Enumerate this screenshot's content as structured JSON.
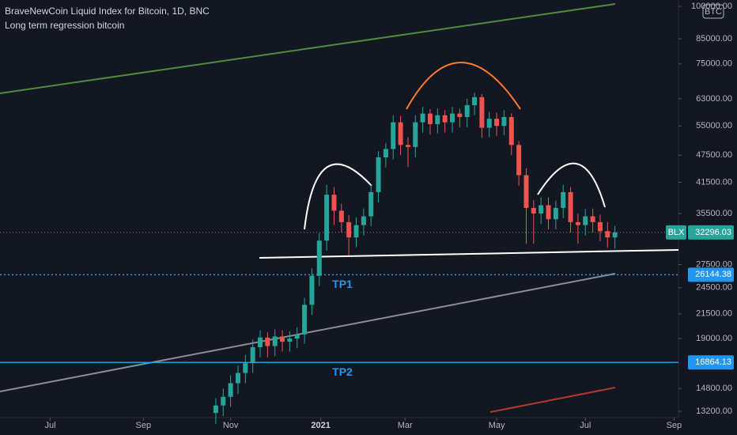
{
  "chart_data": {
    "type": "candlestick",
    "title": "BraveNewCoin Liquid Index for Bitcoin, 1D, BNC",
    "subtitle": "Long term regression bitcoin",
    "currency": "BTC",
    "yscale": "log",
    "ylim": [
      12800,
      103200
    ],
    "yticks": [
      {
        "value": 100000,
        "label": "100000.00"
      },
      {
        "value": 85000,
        "label": "85000.00"
      },
      {
        "value": 75000,
        "label": "75000.00"
      },
      {
        "value": 63000,
        "label": "63000.00"
      },
      {
        "value": 55000,
        "label": "55000.00"
      },
      {
        "value": 47500,
        "label": "47500.00"
      },
      {
        "value": 41500,
        "label": "41500.00"
      },
      {
        "value": 35500,
        "label": "35500.00"
      },
      {
        "value": 27500,
        "label": "27500.00"
      },
      {
        "value": 24500,
        "label": "24500.00"
      },
      {
        "value": 21500,
        "label": "21500.00"
      },
      {
        "value": 19000,
        "label": "19000.00"
      },
      {
        "value": 14800,
        "label": "14800.00"
      },
      {
        "value": 13200,
        "label": "13200.00"
      }
    ],
    "xlim": [
      0,
      459
    ],
    "xticks": [
      {
        "value": 34,
        "label": "Jul"
      },
      {
        "value": 97,
        "label": "Sep"
      },
      {
        "value": 156,
        "label": "Nov"
      },
      {
        "value": 217,
        "label": "2021"
      },
      {
        "value": 274,
        "label": "Mar"
      },
      {
        "value": 336,
        "label": "May"
      },
      {
        "value": 396,
        "label": "Jul"
      },
      {
        "value": 456,
        "label": "Sep"
      }
    ],
    "up_color": "#26a69a",
    "down_color": "#ef5350",
    "x": [
      146,
      151,
      156,
      161,
      166,
      171,
      176,
      181,
      186,
      191,
      196,
      201,
      206,
      211,
      216,
      221,
      226,
      231,
      236,
      241,
      246,
      251,
      256,
      261,
      266,
      271,
      276,
      281,
      286,
      291,
      296,
      301,
      306,
      311,
      316,
      321,
      326,
      331,
      336,
      341,
      346,
      351,
      356,
      361,
      366,
      371,
      376,
      381,
      386,
      391,
      396,
      401,
      406,
      411,
      416
    ],
    "open": [
      13100,
      13600,
      14200,
      15200,
      16000,
      16800,
      18200,
      19100,
      18300,
      19200,
      18700,
      19000,
      19400,
      22500,
      26000,
      31000,
      39000,
      36000,
      34000,
      31500,
      33500,
      35000,
      39500,
      47000,
      49000,
      56000,
      50000,
      49500,
      56000,
      58500,
      55500,
      58000,
      56000,
      58500,
      57500,
      61000,
      63500,
      54500,
      57000,
      55000,
      57500,
      50000,
      43000,
      36500,
      35500,
      37000,
      34500,
      36500,
      39500,
      34000,
      33500,
      35000,
      34000,
      32500,
      31500
    ],
    "high": [
      14100,
      14800,
      15800,
      16600,
      17500,
      18900,
      19800,
      19600,
      19900,
      19800,
      19700,
      20100,
      23300,
      27000,
      32200,
      41000,
      40500,
      37300,
      35200,
      34800,
      36400,
      41000,
      48500,
      50500,
      58000,
      57800,
      52000,
      58000,
      60500,
      59800,
      60000,
      59500,
      60500,
      60000,
      63000,
      65000,
      64500,
      59000,
      58800,
      59500,
      58600,
      51000,
      44500,
      38000,
      38500,
      38500,
      37900,
      41000,
      40500,
      35500,
      36300,
      36400,
      35300,
      34000,
      33400
    ],
    "low": [
      12400,
      12900,
      13500,
      14400,
      15200,
      16000,
      17300,
      17300,
      17400,
      17800,
      17800,
      18100,
      18500,
      21400,
      24700,
      29500,
      33500,
      32300,
      28800,
      30000,
      31800,
      33300,
      37500,
      44700,
      46500,
      47500,
      44800,
      47000,
      53200,
      52700,
      53000,
      53200,
      53200,
      54600,
      54600,
      58000,
      51800,
      52000,
      52300,
      52500,
      47500,
      40800,
      30500,
      30500,
      33700,
      32800,
      32800,
      34700,
      32300,
      30500,
      31800,
      32300,
      30900,
      29900,
      29800
    ],
    "close": [
      13600,
      14200,
      15200,
      16000,
      16800,
      18200,
      19100,
      18300,
      19200,
      18700,
      19000,
      19400,
      22500,
      26000,
      31000,
      39000,
      36000,
      34000,
      31500,
      33500,
      35000,
      39500,
      47000,
      49000,
      56000,
      50000,
      49500,
      56000,
      58500,
      55500,
      58000,
      56000,
      58500,
      57500,
      61000,
      63500,
      54500,
      57000,
      55000,
      57500,
      50000,
      43000,
      36500,
      35500,
      37000,
      34500,
      36500,
      39500,
      34000,
      33500,
      35000,
      34000,
      32500,
      31500,
      32296
    ],
    "last": {
      "name": "BLX",
      "value": 32296.03,
      "label": "32296.03",
      "color": "#26a69a"
    },
    "levels": [
      {
        "name": "TP1",
        "value": 26144.38,
        "label": "26144.38",
        "style": "dotted",
        "color": "#2196f3"
      },
      {
        "name": "TP2",
        "value": 16864.13,
        "label": "16864.13",
        "style": "solid",
        "color": "#2196f3"
      }
    ]
  }
}
